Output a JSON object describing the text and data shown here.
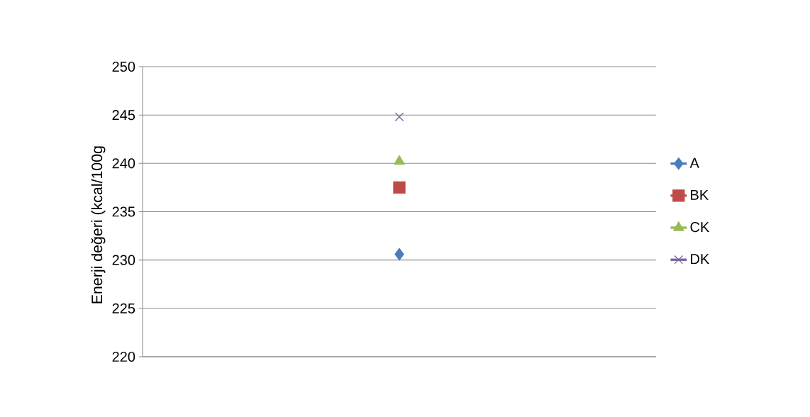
{
  "chart_data": {
    "type": "line",
    "ylabel": "Enerji değeri (kcal/100g",
    "categories": [
      null
    ],
    "series": [
      {
        "name": "A",
        "color": "#4a7ebb",
        "marker": "diamond",
        "values": [
          230.6
        ]
      },
      {
        "name": "BK",
        "color": "#be4b48",
        "marker": "square",
        "values": [
          237.5
        ]
      },
      {
        "name": "CK",
        "color": "#98b954",
        "marker": "triangle",
        "values": [
          240.2
        ]
      },
      {
        "name": "DK",
        "color": "#7d60a0",
        "marker": "cross",
        "values": [
          244.8
        ]
      }
    ],
    "ylim": [
      220,
      250
    ],
    "yticks": [
      220,
      225,
      230,
      235,
      240,
      245,
      250
    ],
    "grid": "y",
    "legend": "right"
  }
}
